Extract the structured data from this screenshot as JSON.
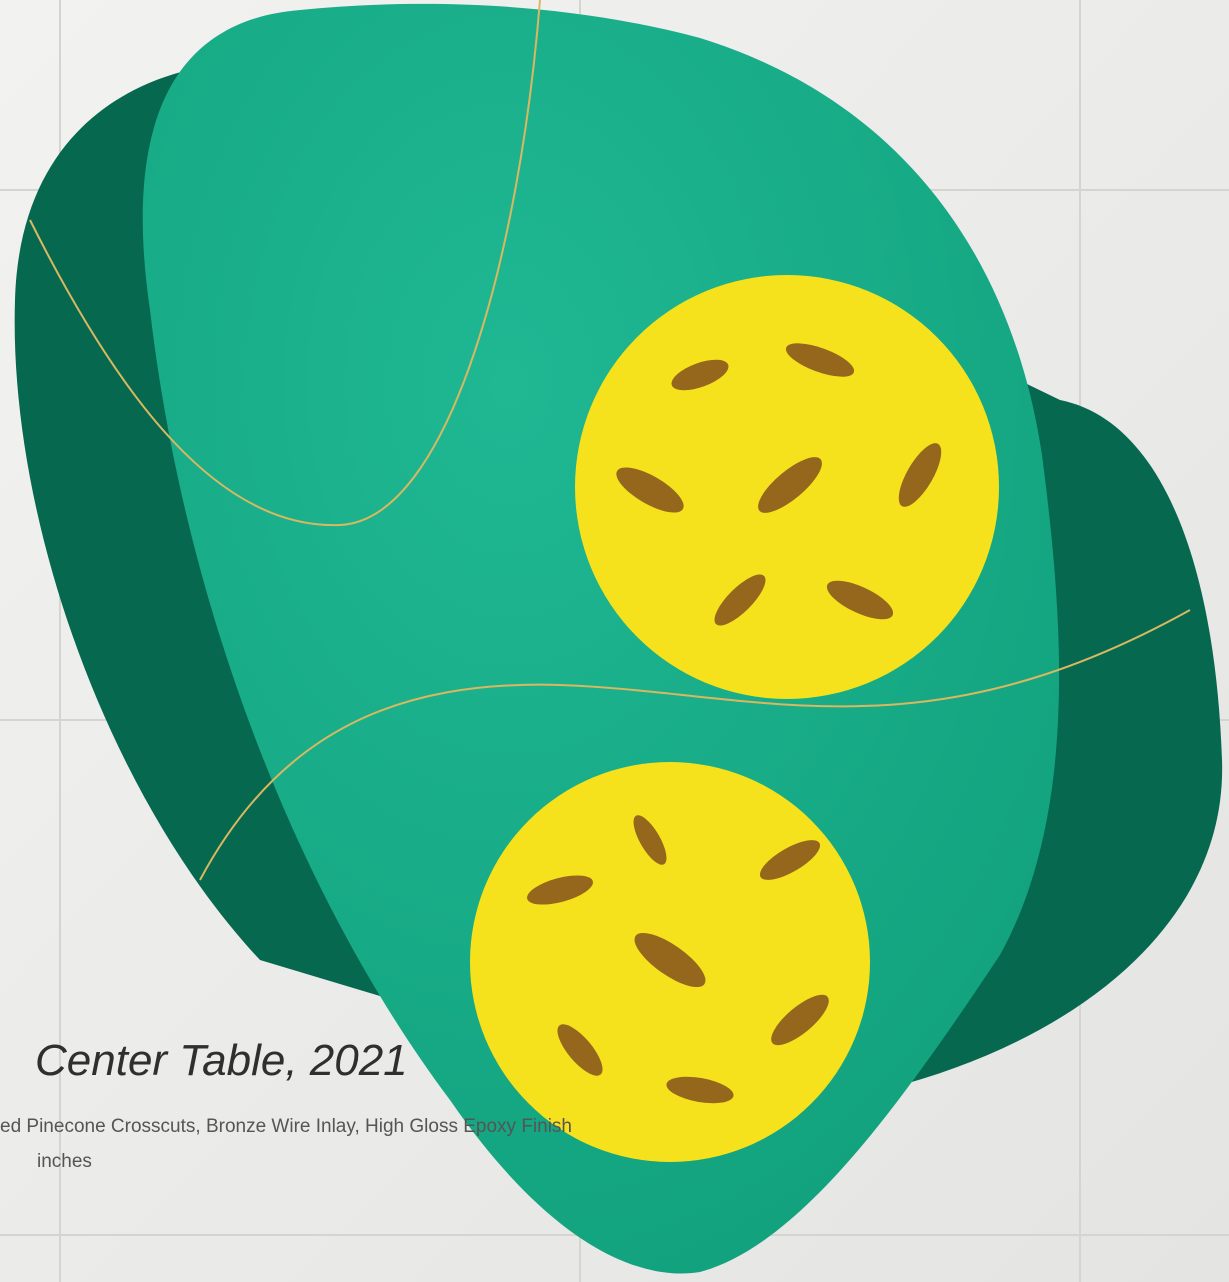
{
  "caption": {
    "title": "Center Table, 2021",
    "materials": "ed Pinecone Crosscuts, Bronze Wire Inlay, High Gloss Epoxy Finish",
    "dimensions": "inches"
  }
}
